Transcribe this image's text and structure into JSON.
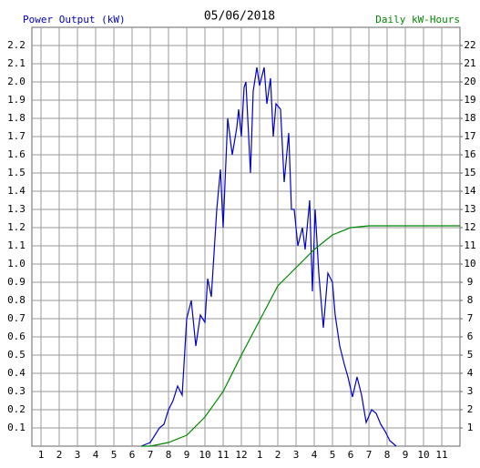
{
  "chart_data": {
    "type": "line",
    "title": "05/06/2018",
    "y_label": "Power Output (kW)",
    "y2_label": "Daily kW-Hours",
    "xlim": [
      0.5,
      24
    ],
    "xticks": [
      1,
      2,
      3,
      4,
      5,
      6,
      7,
      8,
      9,
      10,
      11,
      12,
      {
        "value": 13,
        "label": "1"
      },
      {
        "value": 14,
        "label": "2"
      },
      {
        "value": 15,
        "label": "3"
      },
      {
        "value": 16,
        "label": "4"
      },
      {
        "value": 17,
        "label": "5"
      },
      {
        "value": 18,
        "label": "6"
      },
      {
        "value": 19,
        "label": "7"
      },
      {
        "value": 20,
        "label": "8"
      },
      {
        "value": 21,
        "label": "9"
      },
      {
        "value": 22,
        "label": "10"
      },
      {
        "value": 23,
        "label": "11"
      }
    ],
    "ylim": [
      0,
      2.3
    ],
    "yticks": [
      0.1,
      0.2,
      0.3,
      0.4,
      0.5,
      0.6,
      0.7,
      0.8,
      0.9,
      {
        "value": 1,
        "label": "1.0"
      },
      1.1,
      1.2,
      1.3,
      1.4,
      1.5,
      1.6,
      1.7,
      1.8,
      1.9,
      {
        "value": 2,
        "label": "2.0"
      },
      2.1,
      2.2
    ],
    "y2lim": [
      0,
      23
    ],
    "y2ticks": [
      1,
      2,
      3,
      4,
      5,
      6,
      7,
      8,
      9,
      10,
      11,
      12,
      13,
      14,
      15,
      16,
      17,
      18,
      19,
      20,
      21,
      22
    ],
    "grid": true,
    "series": [
      {
        "name": "Power Output (kW)",
        "color": "#0000cc",
        "axis": "y",
        "x": [
          6.5,
          7,
          7.5,
          7.75,
          8,
          8.25,
          8.5,
          8.75,
          9,
          9.25,
          9.5,
          9.75,
          10,
          10.15,
          10.35,
          10.65,
          10.85,
          11,
          11.25,
          11.5,
          11.75,
          11.85,
          12,
          12.15,
          12.25,
          12.5,
          12.65,
          12.85,
          13,
          13.25,
          13.4,
          13.6,
          13.75,
          13.9,
          14.15,
          14.35,
          14.6,
          14.75,
          14.9,
          15.1,
          15.35,
          15.5,
          15.75,
          15.9,
          16.05,
          16.25,
          16.5,
          16.75,
          17,
          17.15,
          17.4,
          17.65,
          17.85,
          18.1,
          18.35,
          18.6,
          18.85,
          19.15,
          19.4,
          19.65,
          19.9,
          20.15,
          20.5
        ],
        "values": [
          0,
          0.02,
          0.1,
          0.12,
          0.2,
          0.25,
          0.33,
          0.28,
          0.7,
          0.8,
          0.55,
          0.72,
          0.68,
          0.92,
          0.82,
          1.3,
          1.52,
          1.2,
          1.8,
          1.6,
          1.75,
          1.85,
          1.7,
          1.97,
          2.0,
          1.5,
          1.95,
          2.08,
          1.98,
          2.08,
          1.88,
          2.02,
          1.7,
          1.88,
          1.85,
          1.45,
          1.72,
          1.3,
          1.3,
          1.1,
          1.2,
          1.08,
          1.35,
          0.85,
          1.3,
          0.95,
          0.65,
          0.95,
          0.9,
          0.72,
          0.55,
          0.45,
          0.38,
          0.27,
          0.38,
          0.28,
          0.13,
          0.2,
          0.18,
          0.12,
          0.08,
          0.03,
          0
        ]
      },
      {
        "name": "Daily kW-Hours",
        "color": "#008800",
        "axis": "y2",
        "x": [
          6.5,
          7,
          8,
          9,
          10,
          11,
          12,
          13,
          14,
          15,
          16,
          17,
          18,
          19,
          20,
          24
        ],
        "values": [
          0,
          0,
          0.2,
          0.6,
          1.6,
          3,
          5,
          6.9,
          8.8,
          9.8,
          10.8,
          11.6,
          12,
          12.1,
          12.1,
          12.1
        ]
      }
    ]
  }
}
